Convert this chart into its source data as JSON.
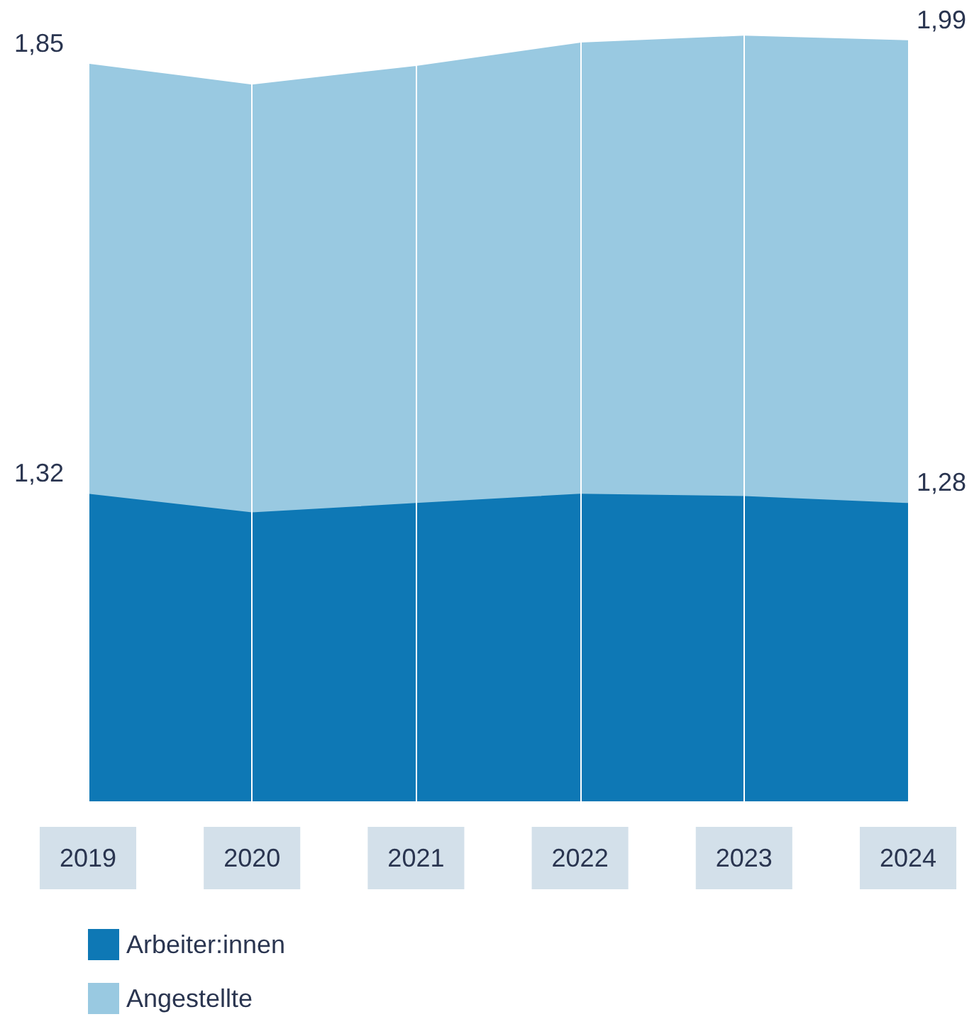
{
  "chart_data": {
    "type": "area",
    "stacked": true,
    "categories": [
      "2019",
      "2020",
      "2021",
      "2022",
      "2023",
      "2024"
    ],
    "series": [
      {
        "name": "Arbeiter:innen",
        "color": "#0e78b5",
        "values": [
          1.32,
          1.24,
          1.28,
          1.32,
          1.31,
          1.28
        ],
        "value_labels": [
          "1,32",
          null,
          null,
          null,
          null,
          "1,28"
        ]
      },
      {
        "name": "Angestellte",
        "color": "#99c9e1",
        "values": [
          1.85,
          1.84,
          1.88,
          1.94,
          1.98,
          1.99
        ],
        "value_labels": [
          "1,85",
          null,
          null,
          null,
          null,
          "1,99"
        ]
      }
    ],
    "ylim": [
      0,
      3.3
    ],
    "grid": "x",
    "legend": "bottom left",
    "marker": "none"
  }
}
